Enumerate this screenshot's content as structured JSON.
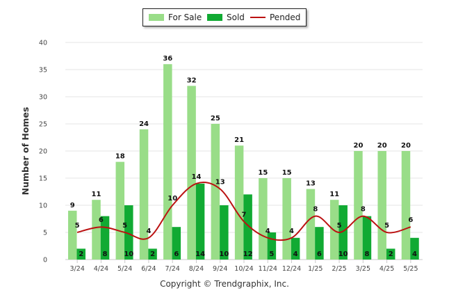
{
  "chart_data": {
    "type": "bar",
    "categories": [
      "3/24",
      "4/24",
      "5/24",
      "6/24",
      "7/24",
      "8/24",
      "9/24",
      "10/24",
      "11/24",
      "12/24",
      "1/25",
      "2/25",
      "3/25",
      "4/25",
      "5/25"
    ],
    "series": [
      {
        "name": "For Sale",
        "type": "bar",
        "color": "#99dd88",
        "values": [
          9,
          11,
          18,
          24,
          36,
          32,
          25,
          21,
          15,
          15,
          13,
          11,
          20,
          20,
          20
        ]
      },
      {
        "name": "Sold",
        "type": "bar",
        "color": "#11aa33",
        "values": [
          2,
          8,
          10,
          2,
          6,
          14,
          10,
          12,
          5,
          4,
          6,
          10,
          8,
          2,
          4
        ]
      },
      {
        "name": "Pended",
        "type": "line",
        "color": "#bb1111",
        "values": [
          5,
          6,
          5,
          4,
          10,
          14,
          13,
          7,
          4,
          4,
          8,
          5,
          8,
          5,
          6
        ]
      }
    ],
    "ylabel": "Number of Homes",
    "xlabel": "",
    "ylim": [
      0,
      40
    ],
    "yticks": [
      0,
      5,
      10,
      15,
      20,
      25,
      30,
      35,
      40
    ],
    "grid": true,
    "legend_position": "top-center"
  },
  "footer": {
    "copyright": "Copyright © Trendgraphix, Inc."
  }
}
